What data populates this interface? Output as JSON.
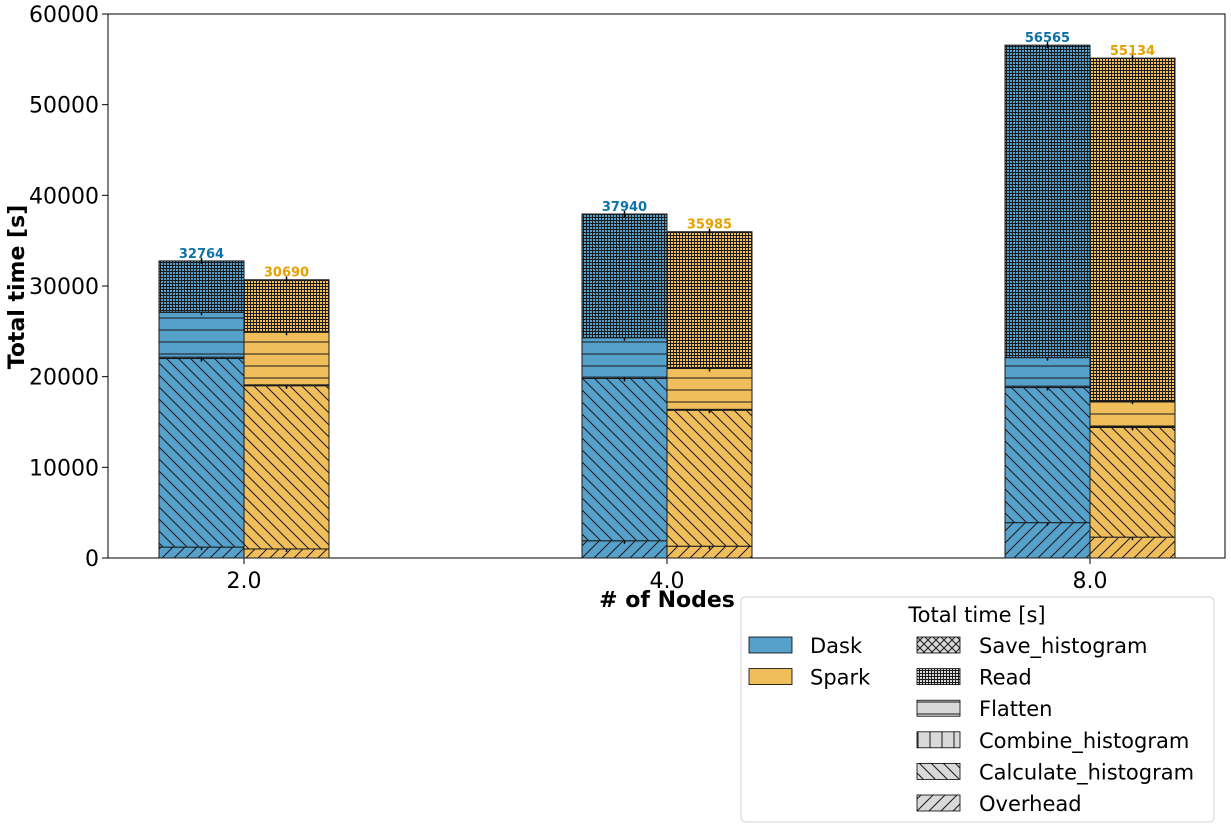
{
  "chart_data": {
    "type": "bar",
    "stacked": true,
    "grouped": true,
    "xlabel": "# of Nodes",
    "ylabel": "Total time [s]",
    "ylim": [
      0,
      60000
    ],
    "yticks": [
      0,
      10000,
      20000,
      30000,
      40000,
      50000,
      60000
    ],
    "categories": [
      "2.0",
      "4.0",
      "8.0"
    ],
    "components": [
      "Overhead",
      "Calculate_histogram",
      "Combine_histogram",
      "Flatten",
      "Read",
      "Save_histogram"
    ],
    "series": [
      {
        "name": "Dask",
        "color": "#56a0cc",
        "label_color": "#0c72a8",
        "totals": [
          32764,
          37940,
          56565
        ],
        "stacks": [
          [
            1200,
            20800,
            150,
            4950,
            5664,
            0
          ],
          [
            1900,
            17900,
            150,
            4350,
            13640,
            0
          ],
          [
            3900,
            14900,
            150,
            3150,
            34465,
            0
          ]
        ]
      },
      {
        "name": "Spark",
        "color": "#f0be5a",
        "label_color": "#e6a100",
        "totals": [
          30690,
          35985,
          55134
        ],
        "stacks": [
          [
            1000,
            18000,
            100,
            5800,
            5790,
            0
          ],
          [
            1300,
            15000,
            100,
            4500,
            15085,
            0
          ],
          [
            2300,
            12100,
            100,
            2800,
            37834,
            0
          ]
        ]
      }
    ],
    "legend": {
      "title": "Total time [s]",
      "placement": "lower-right, outside",
      "series_entries": [
        "Dask",
        "Spark"
      ],
      "component_entries": [
        "Save_histogram",
        "Read",
        "Flatten",
        "Combine_histogram",
        "Calculate_histogram",
        "Overhead"
      ],
      "component_hatches": [
        "cross",
        "grid",
        "horizontal",
        "vertical",
        "back-diagonal",
        "forward-diagonal"
      ]
    },
    "grid": false
  }
}
